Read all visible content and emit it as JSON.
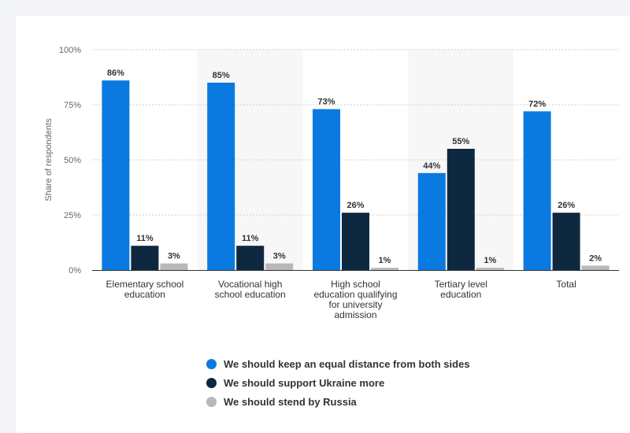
{
  "chart_data": {
    "type": "bar",
    "ylabel": "Share of respondents",
    "ylim": [
      0,
      100
    ],
    "yticks": [
      "0%",
      "25%",
      "50%",
      "75%",
      "100%"
    ],
    "grid": true,
    "legend_position": "bottom",
    "categories": [
      [
        "Elementary school",
        "education"
      ],
      [
        "Vocational high",
        "school education"
      ],
      [
        "High school",
        "education qualifying",
        "for university",
        "admission"
      ],
      [
        "Tertiary level",
        "education"
      ],
      [
        "Total"
      ]
    ],
    "series": [
      {
        "name": "We should keep an equal distance from both sides",
        "color": "#0a7ae0",
        "values": [
          86,
          85,
          73,
          44,
          72
        ],
        "labels": [
          "86%",
          "85%",
          "73%",
          "44%",
          "72%"
        ]
      },
      {
        "name": "We should support Ukraine more",
        "color": "#0e2840",
        "values": [
          11,
          11,
          26,
          55,
          26
        ],
        "labels": [
          "11%",
          "11%",
          "26%",
          "55%",
          "26%"
        ]
      },
      {
        "name": "We should stend by Russia",
        "color": "#b8b8b8",
        "values": [
          3,
          3,
          1,
          1,
          2
        ],
        "labels": [
          "3%",
          "3%",
          "1%",
          "1%",
          "2%"
        ]
      }
    ]
  }
}
